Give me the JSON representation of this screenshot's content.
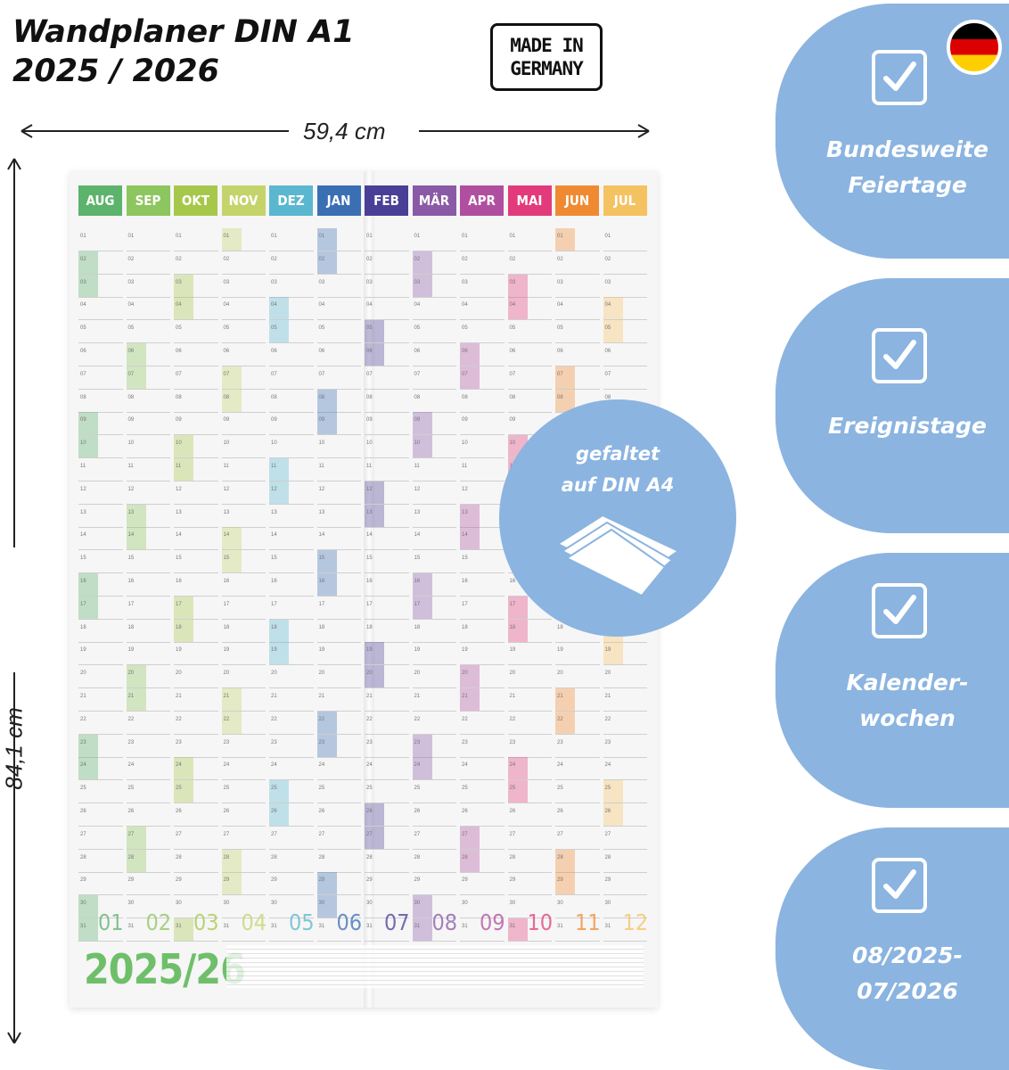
{
  "title": {
    "line1": "Wandplaner DIN A1",
    "line2": "2025 / 2026"
  },
  "badge": {
    "line1": "MADE IN",
    "line2": "GERMANY"
  },
  "dimensions": {
    "width": "59,4 cm",
    "height": "84,1 cm"
  },
  "poster": {
    "months": [
      {
        "label": "AUG",
        "color": "#5cb36b",
        "num": "01"
      },
      {
        "label": "SEP",
        "color": "#8dc55e",
        "num": "02"
      },
      {
        "label": "OKT",
        "color": "#a6c84a",
        "num": "03"
      },
      {
        "label": "NOV",
        "color": "#c4d46a",
        "num": "04"
      },
      {
        "label": "DEZ",
        "color": "#5ab7cf",
        "num": "05"
      },
      {
        "label": "JAN",
        "color": "#3b6fb4",
        "num": "06"
      },
      {
        "label": "FEB",
        "color": "#4a3f96",
        "num": "07"
      },
      {
        "label": "MÄR",
        "color": "#8a5aa7",
        "num": "08"
      },
      {
        "label": "APR",
        "color": "#b04fa0",
        "num": "09"
      },
      {
        "label": "MAI",
        "color": "#e23b7b",
        "num": "10"
      },
      {
        "label": "JUN",
        "color": "#f08a32",
        "num": "11"
      },
      {
        "label": "JUL",
        "color": "#f5c261",
        "num": "12"
      }
    ],
    "days": [
      "01",
      "02",
      "03",
      "04",
      "05",
      "06",
      "07",
      "08",
      "09",
      "10",
      "11",
      "12",
      "13",
      "14",
      "15",
      "16",
      "17",
      "18",
      "19",
      "20",
      "21",
      "22",
      "23",
      "24",
      "25",
      "26",
      "27",
      "28",
      "29",
      "30",
      "31"
    ],
    "year": "2025/26"
  },
  "circle": {
    "line1": "gefaltet",
    "line2": "auf DIN A4"
  },
  "features": [
    {
      "line1": "Bundesweite",
      "line2": "Feiertage"
    },
    {
      "line1": "Ereignistage",
      "line2": ""
    },
    {
      "line1": "Kalender-",
      "line2": "wochen"
    },
    {
      "line1": "08/2025-",
      "line2": "07/2026"
    }
  ],
  "colors": {
    "accent": "#8bb4e0",
    "text": "#111111"
  },
  "icons": [
    "checkbox-icon",
    "german-flag-icon",
    "folded-paper-icon"
  ]
}
